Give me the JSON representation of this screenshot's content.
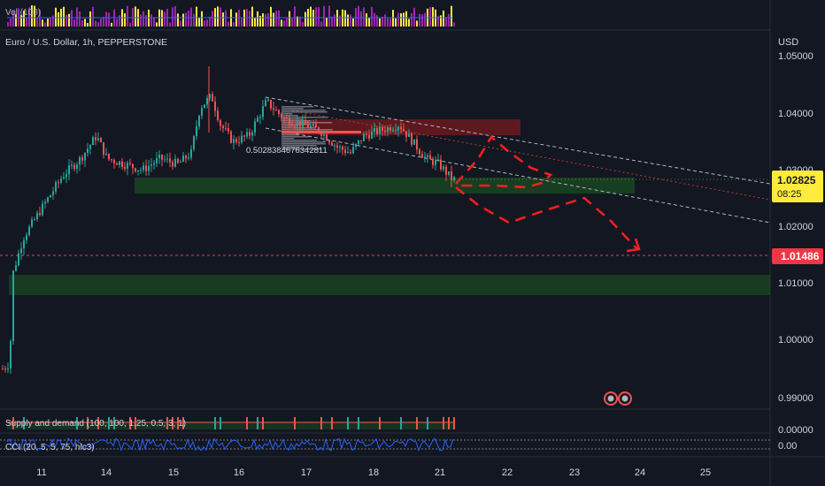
{
  "volume_label": "Vol (100)",
  "symbol_title": "Euro / U.S. Dollar, 1h, PEPPERSTONE",
  "currency": "USD",
  "price_axis": [
    "1.05000",
    "1.04000",
    "1.03000",
    "1.02000",
    "1.01000",
    "1.00000",
    "0.99000"
  ],
  "current_price": "1.02825",
  "countdown": "08:25",
  "marker_price": "1.01486",
  "fib_label": "0.5028384676342811",
  "indicator1": {
    "label": "Supply and demand (100, 100, 1.25, 0.5, 3, 1)",
    "value": "0.00000"
  },
  "indicator2": {
    "label": "CCI (20, 5, 5, 75, hlc3)",
    "value": "0.00"
  },
  "time_axis": [
    "11",
    "14",
    "15",
    "16",
    "17",
    "18",
    "21",
    "22",
    "23",
    "24",
    "25"
  ],
  "colors": {
    "up": "#26a69a",
    "down": "#ef5350",
    "price_badge": "#ffeb3b",
    "marker_badge": "#f23645",
    "zone_green": "#1b5e20",
    "zone_red": "#b71c1c"
  },
  "chart_data": {
    "type": "candlestick",
    "symbol": "EURUSD",
    "interval": "1h",
    "ylim": [
      0.985,
      1.054
    ],
    "x_categories": [
      "11",
      "14",
      "15",
      "16",
      "17",
      "18",
      "21",
      "22",
      "23",
      "24",
      "25"
    ],
    "current_price": 1.02825,
    "marker_price": 1.01486,
    "support_zones": [
      [
        1.0265,
        1.028
      ],
      [
        1.0077,
        1.0113
      ]
    ],
    "resistance_zone": [
      1.0355,
      1.0385
    ]
  }
}
